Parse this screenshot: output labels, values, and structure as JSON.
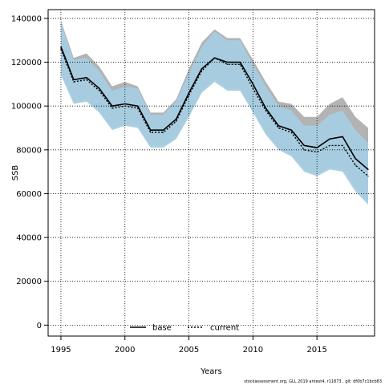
{
  "chart_data": {
    "type": "line",
    "xlabel": "Years",
    "ylabel": "SSB",
    "xlim": [
      1994,
      2019.5
    ],
    "ylim": [
      -5000,
      144000
    ],
    "xticks": [
      1995,
      2000,
      2005,
      2010,
      2015
    ],
    "yticks": [
      0,
      20000,
      40000,
      60000,
      80000,
      100000,
      120000,
      140000
    ],
    "grid": true,
    "legend_position": "bottom-center",
    "x": [
      1995,
      1996,
      1997,
      1998,
      1999,
      2000,
      2001,
      2002,
      2003,
      2004,
      2005,
      2006,
      2007,
      2008,
      2009,
      2010,
      2011,
      2012,
      2013,
      2014,
      2015,
      2016,
      2017,
      2018,
      2019
    ],
    "series": [
      {
        "name": "base",
        "line_color": "#000000",
        "band_color": "#b3b3b3",
        "values": [
          127000,
          112000,
          113000,
          108000,
          100000,
          101000,
          100000,
          89000,
          89000,
          94000,
          106000,
          117000,
          122000,
          120000,
          120000,
          110000,
          99000,
          91000,
          89000,
          82000,
          81000,
          85000,
          86000,
          76000,
          71000
        ],
        "upper": [
          139000,
          122000,
          124000,
          118000,
          109000,
          111000,
          109000,
          97000,
          97000,
          103000,
          117000,
          129000,
          135000,
          131000,
          131000,
          121000,
          111000,
          102000,
          101000,
          95000,
          95000,
          101000,
          104000,
          95000,
          90000
        ],
        "lower": [
          115000,
          102000,
          103000,
          98000,
          90000,
          92000,
          91000,
          82000,
          82000,
          86000,
          96000,
          107000,
          112000,
          108000,
          108000,
          98000,
          88000,
          81000,
          78000,
          71000,
          69000,
          72000,
          71000,
          63000,
          56000
        ]
      },
      {
        "name": "current",
        "line_color": "#000000",
        "band_color": "#a6cee3",
        "values": [
          126000,
          111000,
          112000,
          107000,
          99000,
          100000,
          99000,
          88000,
          88000,
          93000,
          105000,
          116000,
          122000,
          119000,
          119000,
          108000,
          98000,
          90000,
          88000,
          80000,
          79000,
          82000,
          82000,
          73000,
          68000
        ],
        "upper": [
          138000,
          121000,
          122000,
          116000,
          107000,
          109000,
          108000,
          96000,
          96000,
          102000,
          115000,
          127000,
          134000,
          130000,
          130000,
          119000,
          109000,
          100000,
          98000,
          91000,
          91000,
          96000,
          98000,
          89000,
          83000
        ],
        "lower": [
          114000,
          101000,
          102000,
          97000,
          89000,
          91000,
          90000,
          81000,
          81000,
          85000,
          95000,
          106000,
          111000,
          107000,
          107000,
          97000,
          87000,
          80000,
          77000,
          70000,
          68000,
          71000,
          70000,
          61000,
          55000
        ]
      }
    ]
  },
  "footnote": "stockassessment.org, GLL 2019 antest4, r11873 , git: df0b7c1bcb83"
}
